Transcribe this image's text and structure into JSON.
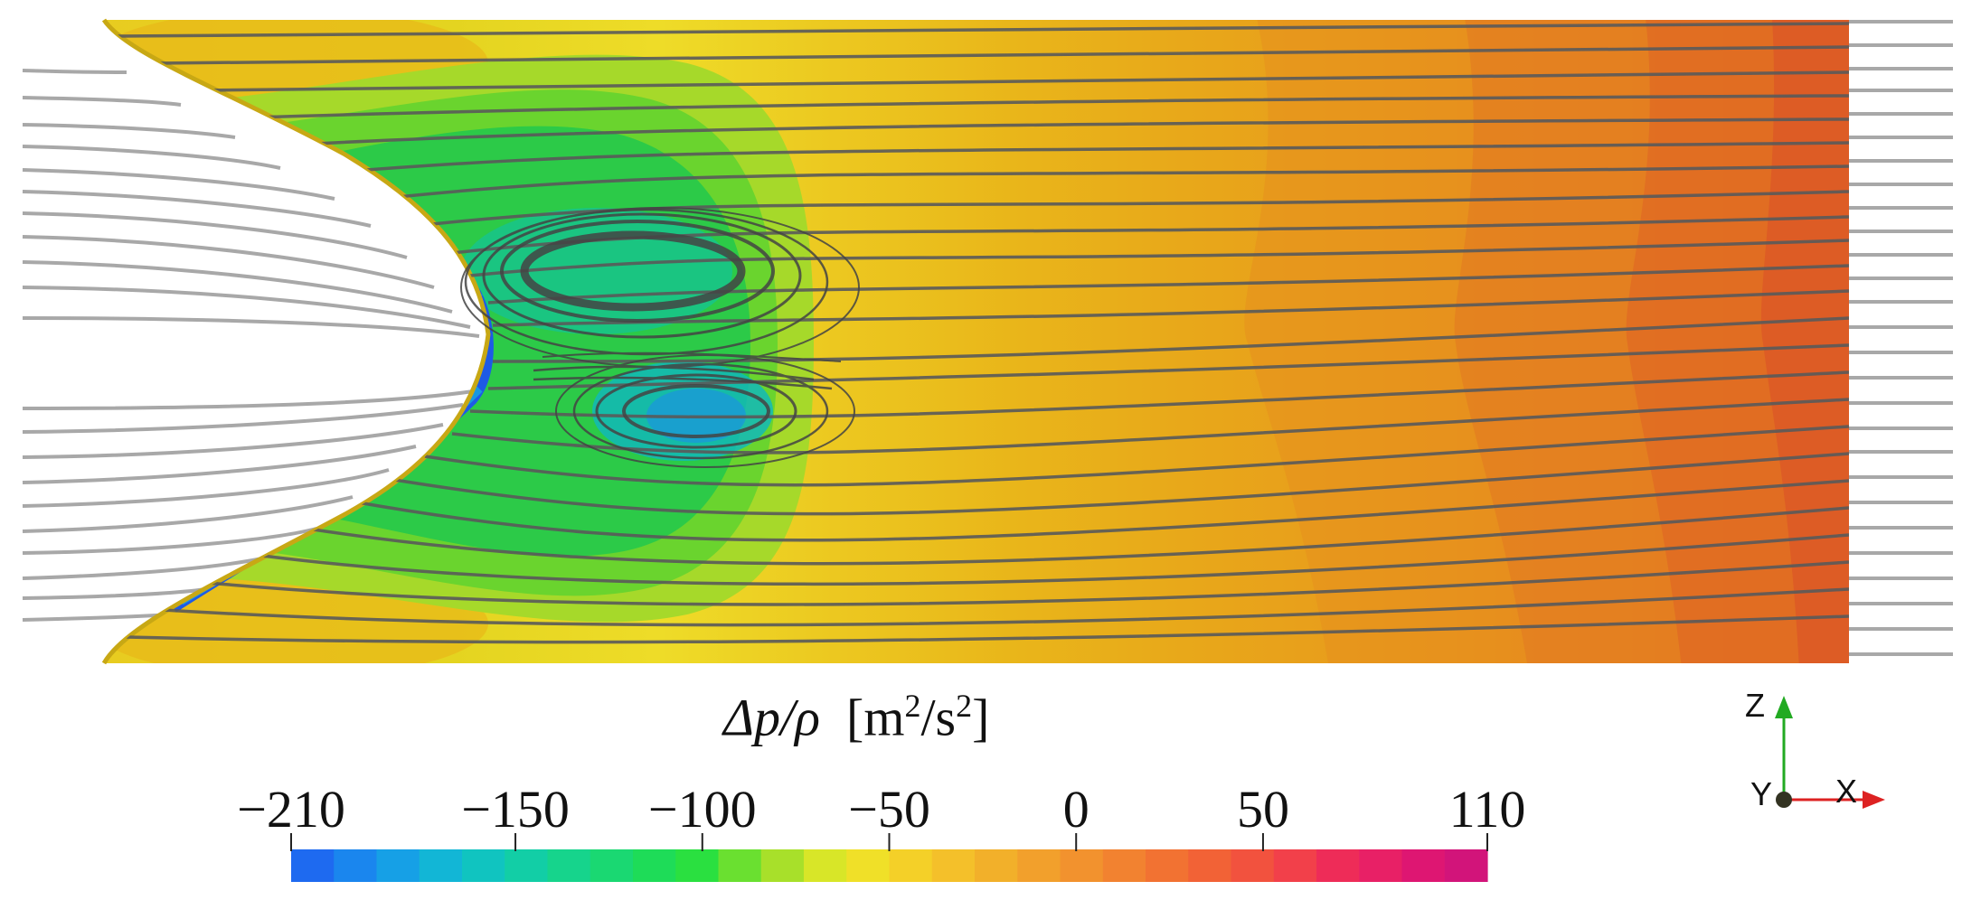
{
  "colorbar": {
    "title_symbol": "Δp/ρ",
    "title_unit_prefix": "[m",
    "title_unit_mid": "/s",
    "title_unit_suffix": "]",
    "title_exp": "2",
    "min": -210,
    "max": 110,
    "ticks": [
      {
        "value": -210,
        "label": "−210"
      },
      {
        "value": -150,
        "label": "−150"
      },
      {
        "value": -100,
        "label": "−100"
      },
      {
        "value": -50,
        "label": "−50"
      },
      {
        "value": 0,
        "label": "0"
      },
      {
        "value": 50,
        "label": "50"
      },
      {
        "value": 110,
        "label": "110"
      }
    ],
    "colors": [
      "#1e6af0",
      "#1a86ee",
      "#16a0e6",
      "#12b6d6",
      "#10c4c0",
      "#12cea6",
      "#16d48c",
      "#1ad872",
      "#1edc58",
      "#2ae040",
      "#6ae030",
      "#a8e02a",
      "#d8e628",
      "#f0e028",
      "#f4d028",
      "#f4c02a",
      "#f2b02a",
      "#f2a02c",
      "#f2922e",
      "#f28230",
      "#f27232",
      "#f26236",
      "#f2523e",
      "#f2404a",
      "#ee2c58",
      "#e82066",
      "#de1672",
      "#d2147a"
    ],
    "accent_low": "#1e6af0",
    "accent_high": "#d2147a"
  },
  "axes": {
    "z": "Z",
    "y": "Y",
    "x": "X",
    "z_color": "#22aa22",
    "x_color": "#dd2222"
  }
}
